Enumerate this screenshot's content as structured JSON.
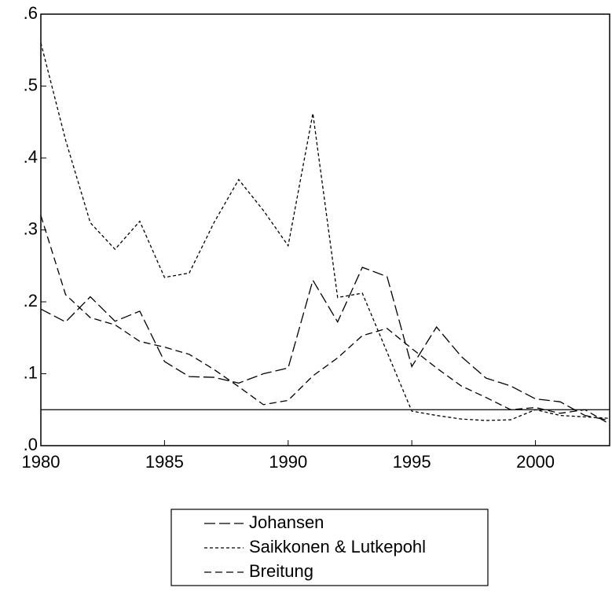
{
  "chart_data": {
    "type": "line",
    "x": [
      1980,
      1981,
      1982,
      1983,
      1984,
      1985,
      1986,
      1987,
      1988,
      1989,
      1990,
      1991,
      1992,
      1993,
      1994,
      1995,
      1996,
      1997,
      1998,
      1999,
      2000,
      2001,
      2002,
      2003
    ],
    "series": [
      {
        "name": "Johansen",
        "color": "#000000",
        "dash": "14 5",
        "values": [
          0.19,
          0.172,
          0.207,
          0.173,
          0.187,
          0.117,
          0.096,
          0.095,
          0.087,
          0.1,
          0.108,
          0.23,
          0.172,
          0.248,
          0.235,
          0.11,
          0.165,
          0.124,
          0.094,
          0.083,
          0.065,
          0.061,
          0.042,
          0.035
        ]
      },
      {
        "name": "Saikkonen & Lutkepohl",
        "color": "#000000",
        "dash": "4 3",
        "values": [
          0.56,
          0.425,
          0.31,
          0.273,
          0.312,
          0.234,
          0.24,
          0.31,
          0.37,
          0.327,
          0.278,
          0.462,
          0.206,
          0.212,
          0.13,
          0.048,
          0.042,
          0.037,
          0.035,
          0.036,
          0.05,
          0.042,
          0.04,
          0.038
        ]
      },
      {
        "name": "Breitung",
        "color": "#000000",
        "dash": "9 5",
        "values": [
          0.32,
          0.21,
          0.178,
          0.168,
          0.145,
          0.137,
          0.127,
          0.106,
          0.082,
          0.057,
          0.063,
          0.097,
          0.122,
          0.153,
          0.163,
          0.135,
          0.108,
          0.083,
          0.067,
          0.05,
          0.053,
          0.045,
          0.05,
          0.03
        ]
      }
    ],
    "reference_line": 0.05,
    "xlim": [
      1980,
      2003
    ],
    "xticks": [
      1980,
      1985,
      1990,
      1995,
      2000
    ],
    "ylim": [
      0,
      0.6
    ],
    "yticks": [
      {
        "value": 0,
        "label": ".0"
      },
      {
        "value": 0.1,
        "label": ".1"
      },
      {
        "value": 0.2,
        "label": ".2"
      },
      {
        "value": 0.3,
        "label": ".3"
      },
      {
        "value": 0.4,
        "label": ".4"
      },
      {
        "value": 0.5,
        "label": ".5"
      },
      {
        "value": 0.6,
        "label": ".6"
      }
    ],
    "legend": "bottom"
  }
}
